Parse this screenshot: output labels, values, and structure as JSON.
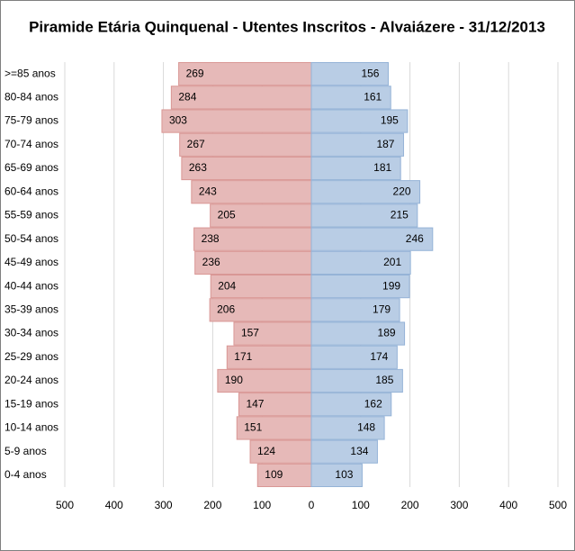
{
  "chart_data": {
    "type": "pyramid",
    "title": "Piramide Etária Quinquenal - Utentes Inscritos - Alvaiázere - 31/12/2013",
    "categories": [
      ">=85 anos",
      "80-84 anos",
      "75-79 anos",
      "70-74 anos",
      "65-69 anos",
      "60-64 anos",
      "55-59 anos",
      "50-54 anos",
      "45-49 anos",
      "40-44 anos",
      "35-39 anos",
      "30-34 anos",
      "25-29 anos",
      "20-24 anos",
      "15-19 anos",
      "10-14 anos",
      "5-9 anos",
      "0-4 anos"
    ],
    "series": [
      {
        "color": "#e6b9b8",
        "values": [
          -269,
          -284,
          -303,
          -267,
          -263,
          -243,
          -205,
          -238,
          -236,
          -204,
          -206,
          -157,
          -171,
          -190,
          -147,
          -151,
          -124,
          -109
        ],
        "value_labels": [
          "269",
          "284",
          "303",
          "267",
          "263",
          "243",
          "205",
          "238",
          "236",
          "204",
          "206",
          "157",
          "171",
          "190",
          "147",
          "151",
          "124",
          "109"
        ]
      },
      {
        "color": "#b9cde5",
        "values": [
          156,
          161,
          195,
          187,
          181,
          220,
          215,
          246,
          201,
          199,
          179,
          189,
          174,
          185,
          162,
          148,
          134,
          103
        ]
      }
    ],
    "xlim": [
      -500,
      500
    ],
    "xticks": [
      {
        "value": -500,
        "label": "500"
      },
      {
        "value": -400,
        "label": "400"
      },
      {
        "value": -300,
        "label": "300"
      },
      {
        "value": -200,
        "label": "200"
      },
      {
        "value": -100,
        "label": "100"
      },
      0,
      100,
      200,
      300,
      400,
      500
    ],
    "grid": true
  }
}
